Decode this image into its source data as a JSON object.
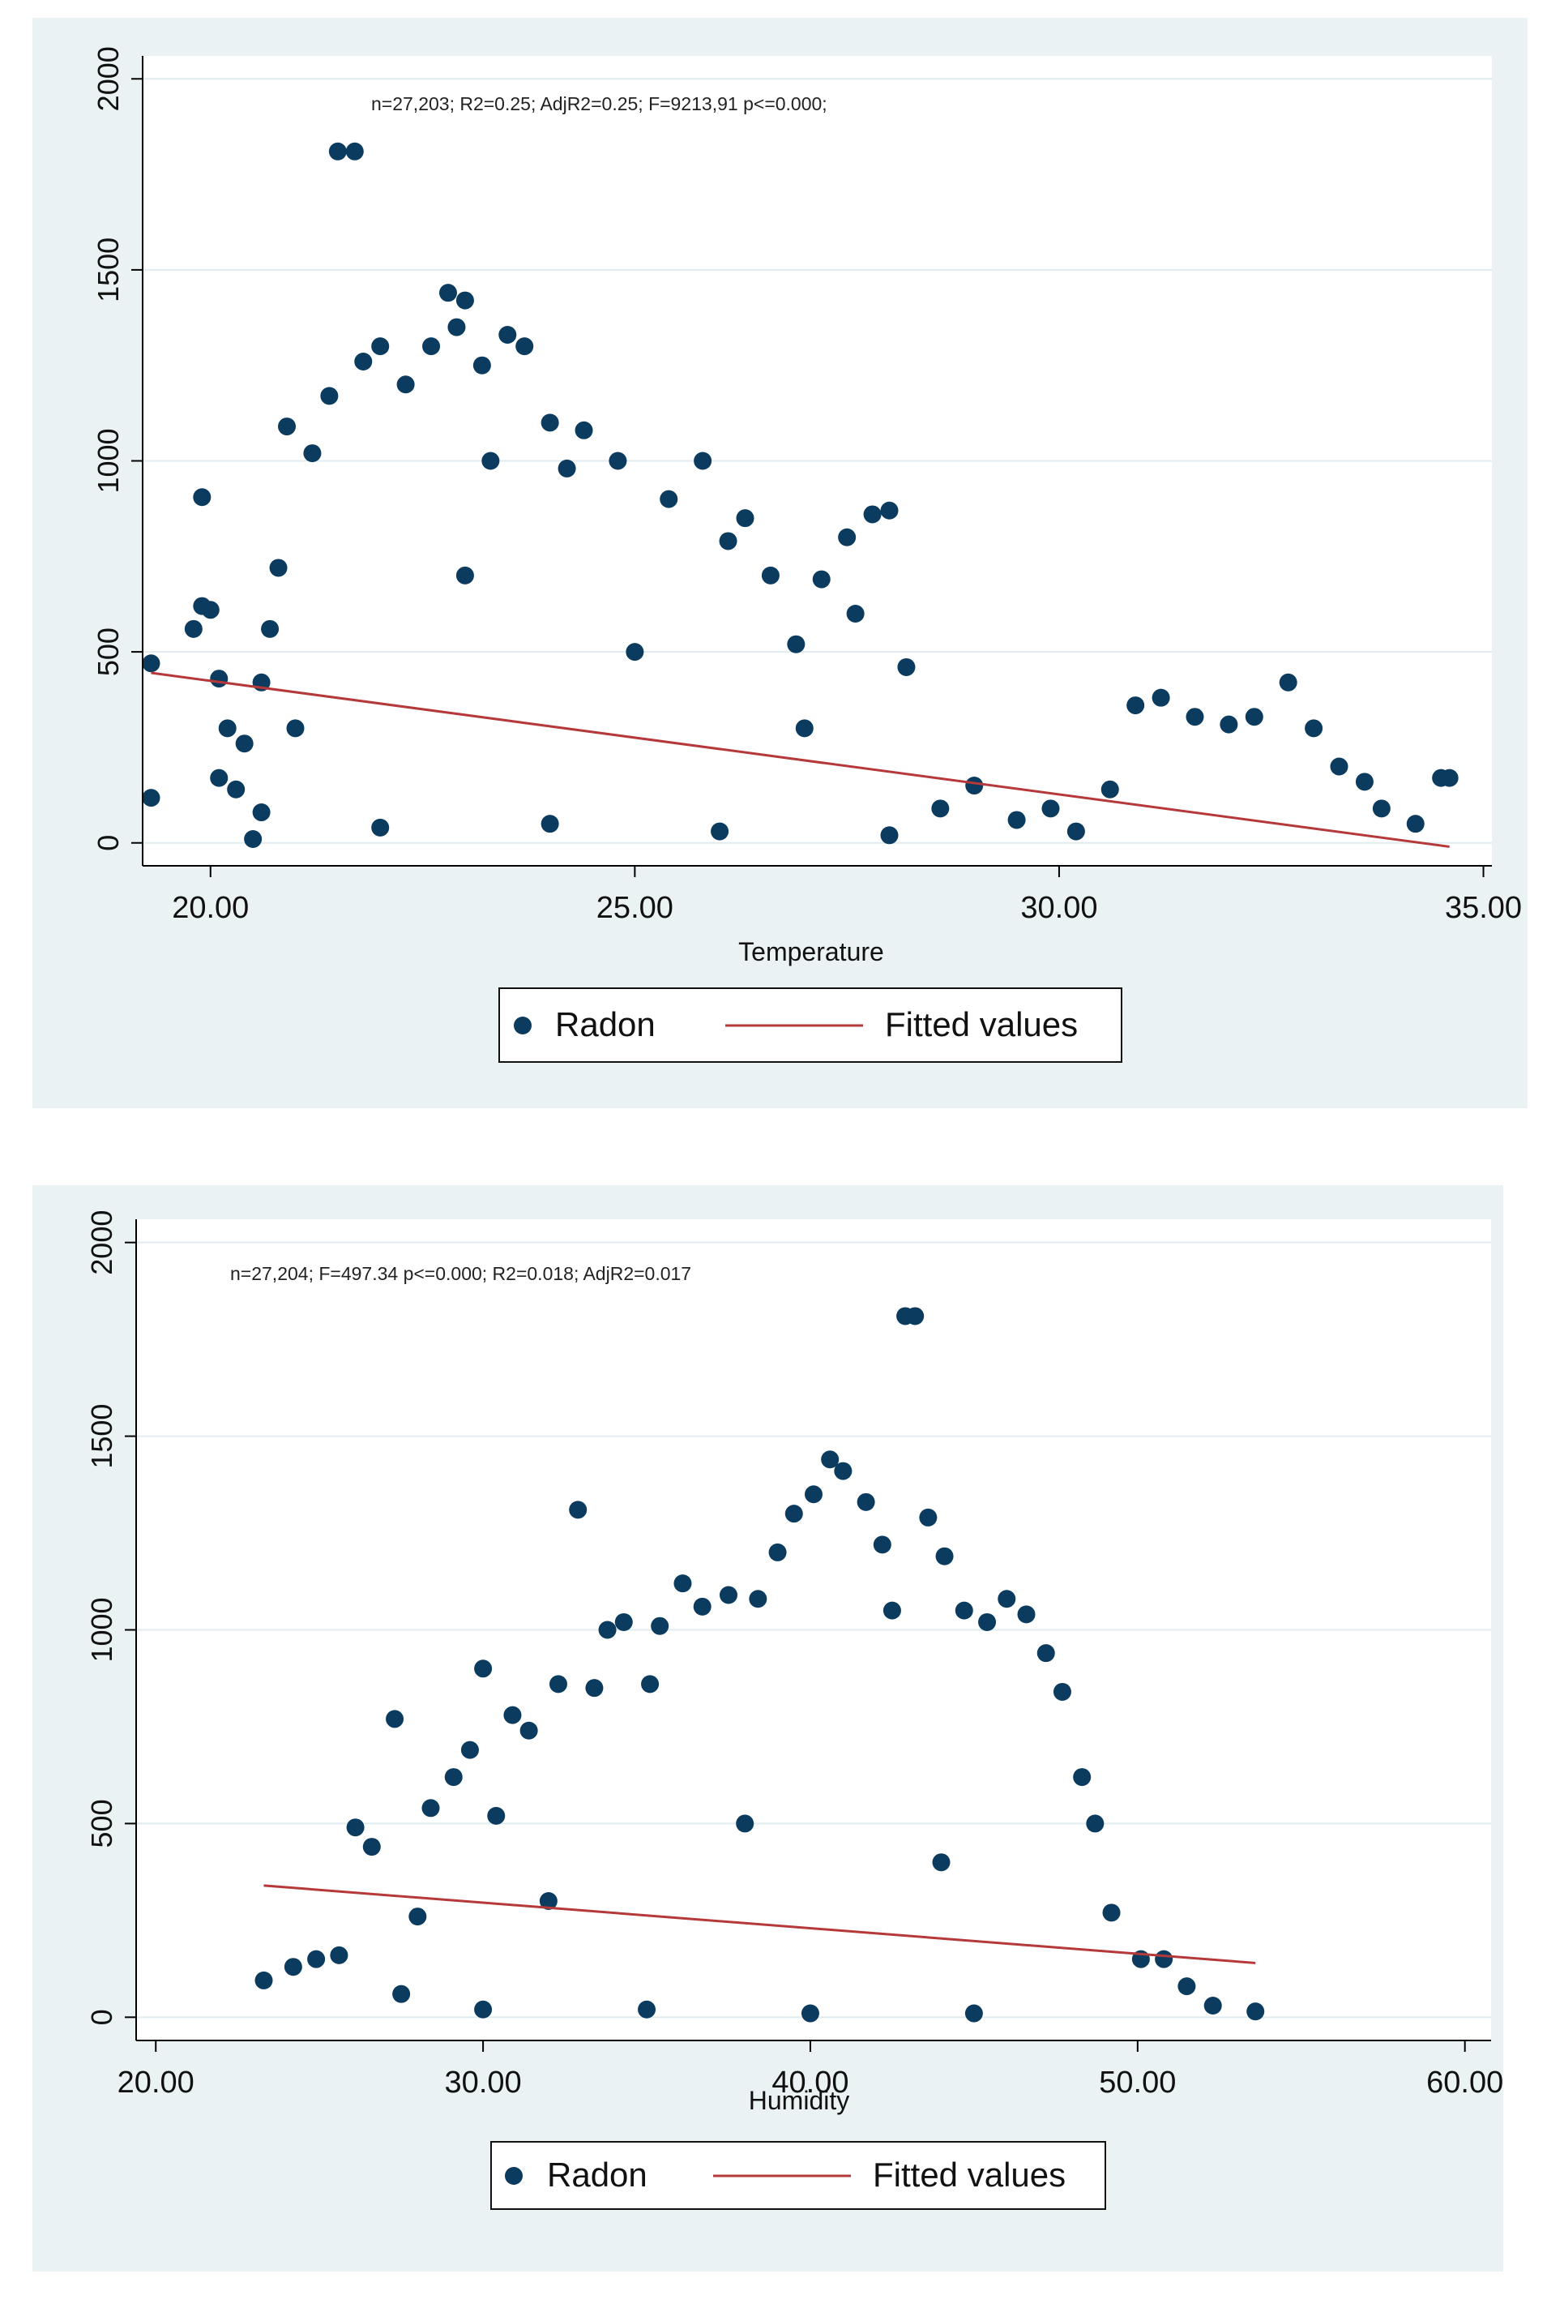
{
  "chart_data": [
    {
      "type": "scatter",
      "title": "",
      "annotation": "n=27,203; R2=0.25; AdjR2=0.25; F=9213,91 p<=0.000;",
      "xlabel": "Temperature",
      "ylabel": "",
      "xlim": [
        19.2,
        35.1
      ],
      "ylim": [
        -60,
        2060
      ],
      "xticks": [
        20,
        25,
        30,
        35
      ],
      "xtick_labels": [
        "20.00",
        "25.00",
        "30.00",
        "35.00"
      ],
      "yticks": [
        0,
        500,
        1000,
        1500,
        2000
      ],
      "ytick_labels": [
        "0",
        "500",
        "1000",
        "1500",
        "2000"
      ],
      "grid": true,
      "legend": [
        "Radon",
        "Fitted values"
      ],
      "legend_position": "bottom-center",
      "colors": {
        "points": "#0b3b5e",
        "fit": "#b5393a",
        "frame": "#eaf2f3",
        "grid": "#e0ecef"
      },
      "series": [
        {
          "name": "Radon",
          "points": [
            [
              19.3,
              470
            ],
            [
              19.3,
              118
            ],
            [
              19.8,
              560
            ],
            [
              19.9,
              905
            ],
            [
              20.0,
              610
            ],
            [
              20.1,
              430
            ],
            [
              20.2,
              300
            ],
            [
              20.1,
              170
            ],
            [
              19.9,
              620
            ],
            [
              20.3,
              140
            ],
            [
              20.4,
              260
            ],
            [
              20.5,
              10
            ],
            [
              20.6,
              80
            ],
            [
              20.6,
              420
            ],
            [
              20.8,
              720
            ],
            [
              20.9,
              1090
            ],
            [
              20.7,
              560
            ],
            [
              21.2,
              1020
            ],
            [
              21.5,
              1810
            ],
            [
              21.7,
              1810
            ],
            [
              21.4,
              1170
            ],
            [
              21.8,
              1260
            ],
            [
              22.0,
              1300
            ],
            [
              22.3,
              1200
            ],
            [
              22.6,
              1300
            ],
            [
              22.8,
              1440
            ],
            [
              23.0,
              1420
            ],
            [
              22.9,
              1350
            ],
            [
              23.2,
              1250
            ],
            [
              23.5,
              1330
            ],
            [
              23.7,
              1300
            ],
            [
              23.3,
              1000
            ],
            [
              24.0,
              1100
            ],
            [
              24.4,
              1080
            ],
            [
              24.8,
              1000
            ],
            [
              24.2,
              980
            ],
            [
              25.4,
              900
            ],
            [
              25.8,
              1000
            ],
            [
              26.1,
              790
            ],
            [
              26.3,
              850
            ],
            [
              26.6,
              700
            ],
            [
              26.9,
              520
            ],
            [
              27.2,
              690
            ],
            [
              27.5,
              800
            ],
            [
              27.8,
              860
            ],
            [
              28.0,
              870
            ],
            [
              28.2,
              460
            ],
            [
              27.6,
              600
            ],
            [
              28.6,
              90
            ],
            [
              29.0,
              150
            ],
            [
              29.5,
              60
            ],
            [
              29.9,
              90
            ],
            [
              30.2,
              30
            ],
            [
              30.6,
              140
            ],
            [
              30.9,
              360
            ],
            [
              31.2,
              380
            ],
            [
              31.6,
              330
            ],
            [
              32.0,
              310
            ],
            [
              32.3,
              330
            ],
            [
              32.7,
              420
            ],
            [
              33.0,
              300
            ],
            [
              33.3,
              200
            ],
            [
              33.6,
              160
            ],
            [
              33.8,
              90
            ],
            [
              34.2,
              50
            ],
            [
              34.5,
              170
            ],
            [
              34.6,
              170
            ],
            [
              21.0,
              300
            ],
            [
              22.0,
              40
            ],
            [
              24.0,
              50
            ],
            [
              26.0,
              30
            ],
            [
              28.0,
              20
            ],
            [
              23.0,
              700
            ],
            [
              25.0,
              500
            ],
            [
              27.0,
              300
            ]
          ]
        },
        {
          "name": "Fitted values",
          "line": [
            [
              19.3,
              445
            ],
            [
              34.6,
              -10
            ]
          ]
        }
      ]
    },
    {
      "type": "scatter",
      "title": "",
      "annotation": "n=27,204; F=497.34 p<=0.000; R2=0.018; AdjR2=0.017",
      "xlabel": "Humidity",
      "ylabel": "",
      "xlim": [
        19.4,
        60.8
      ],
      "ylim": [
        -60,
        2060
      ],
      "xticks": [
        20,
        30,
        40,
        50,
        60
      ],
      "xtick_labels": [
        "20.00",
        "30.00",
        "40.00",
        "50.00",
        "60.00"
      ],
      "yticks": [
        0,
        500,
        1000,
        1500,
        2000
      ],
      "ytick_labels": [
        "0",
        "500",
        "1000",
        "1500",
        "2000"
      ],
      "grid": true,
      "legend": [
        "Radon",
        "Fitted values"
      ],
      "legend_position": "bottom-center",
      "colors": {
        "points": "#0b3b5e",
        "fit": "#b5393a",
        "frame": "#eaf2f3",
        "grid": "#e0ecef"
      },
      "series": [
        {
          "name": "Radon",
          "points": [
            [
              23.3,
              95
            ],
            [
              24.2,
              130
            ],
            [
              24.9,
              150
            ],
            [
              25.6,
              160
            ],
            [
              26.1,
              490
            ],
            [
              26.6,
              440
            ],
            [
              27.3,
              770
            ],
            [
              27.5,
              60
            ],
            [
              28.0,
              260
            ],
            [
              28.4,
              540
            ],
            [
              29.1,
              620
            ],
            [
              29.6,
              690
            ],
            [
              30.0,
              900
            ],
            [
              30.4,
              520
            ],
            [
              30.9,
              780
            ],
            [
              31.4,
              740
            ],
            [
              32.3,
              860
            ],
            [
              32.9,
              1310
            ],
            [
              33.4,
              850
            ],
            [
              33.8,
              1000
            ],
            [
              34.3,
              1020
            ],
            [
              35.1,
              860
            ],
            [
              35.4,
              1010
            ],
            [
              36.1,
              1120
            ],
            [
              36.7,
              1060
            ],
            [
              37.5,
              1090
            ],
            [
              38.4,
              1080
            ],
            [
              39.0,
              1200
            ],
            [
              39.5,
              1300
            ],
            [
              40.1,
              1350
            ],
            [
              40.6,
              1440
            ],
            [
              41.0,
              1410
            ],
            [
              41.7,
              1330
            ],
            [
              42.2,
              1220
            ],
            [
              42.5,
              1050
            ],
            [
              42.9,
              1810
            ],
            [
              43.2,
              1810
            ],
            [
              43.6,
              1290
            ],
            [
              44.1,
              1190
            ],
            [
              44.7,
              1050
            ],
            [
              45.4,
              1020
            ],
            [
              46.0,
              1080
            ],
            [
              46.6,
              1040
            ],
            [
              47.2,
              940
            ],
            [
              47.7,
              840
            ],
            [
              48.3,
              620
            ],
            [
              48.7,
              500
            ],
            [
              49.2,
              270
            ],
            [
              50.1,
              150
            ],
            [
              50.8,
              150
            ],
            [
              51.5,
              80
            ],
            [
              52.3,
              30
            ],
            [
              53.6,
              15
            ],
            [
              30.0,
              20
            ],
            [
              35.0,
              20
            ],
            [
              40.0,
              10
            ],
            [
              45.0,
              10
            ],
            [
              32.0,
              300
            ],
            [
              38.0,
              500
            ],
            [
              44.0,
              400
            ]
          ]
        },
        {
          "name": "Fitted values",
          "line": [
            [
              23.3,
              340
            ],
            [
              53.6,
              140
            ]
          ]
        }
      ]
    }
  ]
}
